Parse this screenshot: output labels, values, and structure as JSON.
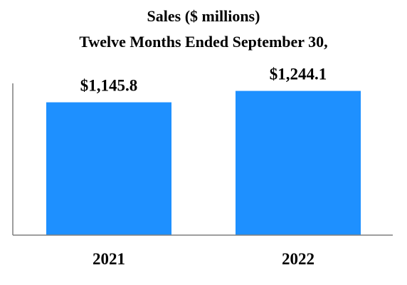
{
  "chart_data": {
    "type": "bar",
    "title": "Sales ($ millions)",
    "subtitle": "Twelve Months Ended September 30,",
    "categories": [
      "2021",
      "2022"
    ],
    "values": [
      1145.8,
      1244.1
    ],
    "data_labels": [
      "$1,145.8",
      "$1,244.1"
    ],
    "xlabel": "",
    "ylabel": "",
    "ylim": [
      0,
      1300
    ],
    "grid": false,
    "legend": "none",
    "bar_color": "#1E90FF",
    "axis_color": "#7F7F7F"
  }
}
